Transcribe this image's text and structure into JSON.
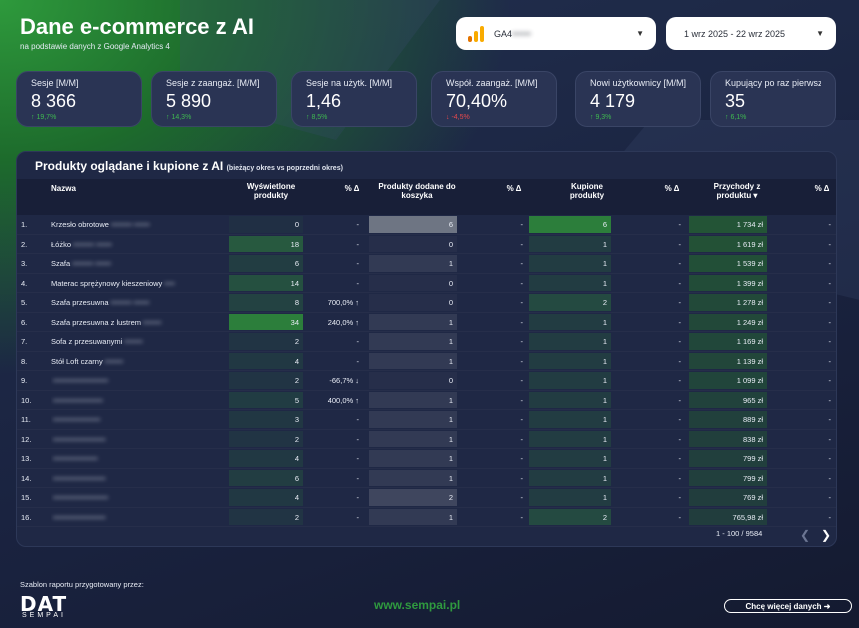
{
  "header": {
    "title": "Dane e-commerce z AI",
    "subtitle": "na podstawie danych z Google Analytics 4"
  },
  "selectors": {
    "property_label": "GA4",
    "property_hidden": "••••••",
    "date_range": "1 wrz 2025 - 22 wrz 2025"
  },
  "kpis": [
    {
      "label": "Sesje [M/M]",
      "value": "8 366",
      "delta": "↑ 19,7%",
      "dir": "up"
    },
    {
      "label": "Sesje z zaangaż. [M/M]",
      "value": "5 890",
      "delta": "↑ 14,3%",
      "dir": "up"
    },
    {
      "label": "Sesje na użytk. [M/M]",
      "value": "1,46",
      "delta": "↑ 8,5%",
      "dir": "up"
    },
    {
      "label": "Współ. zaangaż. [M/M]",
      "value": "70,40%",
      "delta": "↓ -4,5%",
      "dir": "down"
    },
    {
      "label": "Nowi użytkownicy [M/M]",
      "value": "4 179",
      "delta": "↑ 9,3%",
      "dir": "up"
    },
    {
      "label": "Kupujący po raz pierwszy [M/M]",
      "value": "35",
      "delta": "↑ 6,1%",
      "dir": "up"
    }
  ],
  "table": {
    "title": "Produkty oglądane i kupione z AI",
    "title_note": "(bieżący okres vs poprzedni okres)",
    "headers": {
      "name": "Nazwa",
      "views": "Wyświetlone produkty",
      "views_delta": "% Δ",
      "cart": "Produkty dodane do koszyka",
      "cart_delta": "% Δ",
      "bought": "Kupione produkty",
      "bought_delta": "% Δ",
      "revenue": "Przychody z produktu ▾",
      "revenue_delta": "% Δ"
    },
    "rows": [
      {
        "idx": "1.",
        "name": "Krzesło obrotowe",
        "hidden": "•••••••• ••••••",
        "views": "0",
        "vd": "-",
        "cart": "6",
        "cd": "-",
        "bought": "6",
        "bd": "-",
        "revenue": "1 734 zł",
        "rd": "-"
      },
      {
        "idx": "2.",
        "name": "Łóżko",
        "hidden": "•••••••• ••••••",
        "views": "18",
        "vd": "-",
        "cart": "0",
        "cd": "-",
        "bought": "1",
        "bd": "-",
        "revenue": "1 619 zł",
        "rd": "-"
      },
      {
        "idx": "3.",
        "name": "Szafa",
        "hidden": "•••••••• ••••••",
        "views": "6",
        "vd": "-",
        "cart": "1",
        "cd": "-",
        "bought": "1",
        "bd": "-",
        "revenue": "1 539 zł",
        "rd": "-"
      },
      {
        "idx": "4.",
        "name": "Materac sprężynowy kieszeniowy",
        "hidden": "••••",
        "views": "14",
        "vd": "-",
        "cart": "0",
        "cd": "-",
        "bought": "1",
        "bd": "-",
        "revenue": "1 399 zł",
        "rd": "-"
      },
      {
        "idx": "5.",
        "name": "Szafa przesuwna",
        "hidden": "•••••••• ••••••",
        "views": "8",
        "vd": "700,0% ↑",
        "cart": "0",
        "cd": "-",
        "bought": "2",
        "bd": "-",
        "revenue": "1 278 zł",
        "rd": "-"
      },
      {
        "idx": "6.",
        "name": "Szafa przesuwna z lustrem",
        "hidden": "•••••••",
        "views": "34",
        "vd": "240,0% ↑",
        "cart": "1",
        "cd": "-",
        "bought": "1",
        "bd": "-",
        "revenue": "1 249 zł",
        "rd": "-"
      },
      {
        "idx": "7.",
        "name": "Sofa z przesuwanymi",
        "hidden": "•••••••",
        "views": "2",
        "vd": "-",
        "cart": "1",
        "cd": "-",
        "bought": "1",
        "bd": "-",
        "revenue": "1 169 zł",
        "rd": "-"
      },
      {
        "idx": "8.",
        "name": "Stół Loft czarny",
        "hidden": "•••••••",
        "views": "4",
        "vd": "-",
        "cart": "1",
        "cd": "-",
        "bought": "1",
        "bd": "-",
        "revenue": "1 139 zł",
        "rd": "-"
      },
      {
        "idx": "9.",
        "name": "",
        "hidden": "•••••••••••••••••••••",
        "views": "2",
        "vd": "-66,7% ↓",
        "cart": "0",
        "cd": "-",
        "bought": "1",
        "bd": "-",
        "revenue": "1 099 zł",
        "rd": "-"
      },
      {
        "idx": "10.",
        "name": "",
        "hidden": "•••••••••••••••••••",
        "views": "5",
        "vd": "400,0% ↑",
        "cart": "1",
        "cd": "-",
        "bought": "1",
        "bd": "-",
        "revenue": "965 zł",
        "rd": "-"
      },
      {
        "idx": "11.",
        "name": "",
        "hidden": "••••••••••••••••••",
        "views": "3",
        "vd": "-",
        "cart": "1",
        "cd": "-",
        "bought": "1",
        "bd": "-",
        "revenue": "889 zł",
        "rd": "-"
      },
      {
        "idx": "12.",
        "name": "",
        "hidden": "••••••••••••••••••••",
        "views": "2",
        "vd": "-",
        "cart": "1",
        "cd": "-",
        "bought": "1",
        "bd": "-",
        "revenue": "838 zł",
        "rd": "-"
      },
      {
        "idx": "13.",
        "name": "",
        "hidden": "•••••••••••••••••",
        "views": "4",
        "vd": "-",
        "cart": "1",
        "cd": "-",
        "bought": "1",
        "bd": "-",
        "revenue": "799 zł",
        "rd": "-"
      },
      {
        "idx": "14.",
        "name": "",
        "hidden": "••••••••••••••••••••",
        "views": "6",
        "vd": "-",
        "cart": "1",
        "cd": "-",
        "bought": "1",
        "bd": "-",
        "revenue": "799 zł",
        "rd": "-"
      },
      {
        "idx": "15.",
        "name": "",
        "hidden": "•••••••••••••••••••••",
        "views": "4",
        "vd": "-",
        "cart": "2",
        "cd": "-",
        "bought": "1",
        "bd": "-",
        "revenue": "769 zł",
        "rd": "-"
      },
      {
        "idx": "16.",
        "name": "",
        "hidden": "••••••••••••••••••••",
        "views": "2",
        "vd": "-",
        "cart": "1",
        "cd": "-",
        "bought": "2",
        "bd": "-",
        "revenue": "765,98 zł",
        "rd": "-"
      }
    ],
    "pager": "1 - 100 / 9584"
  },
  "footer": {
    "credit": "Szablon raportu przygotowany przez:",
    "logo": "DAT",
    "logo_sub": "SEMPAI",
    "site": "www.sempai.pl",
    "more_label": "Chcę więcej danych ➜"
  },
  "colors": {
    "accent_green": "#2f9a3f",
    "up": "#3fb950",
    "down": "#e5484d",
    "panel": "#1f2845"
  }
}
